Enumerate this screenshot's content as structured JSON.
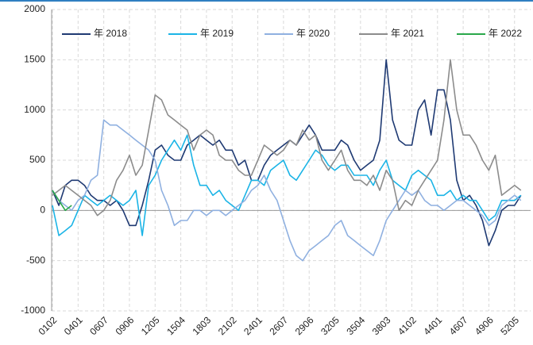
{
  "chart_data": {
    "type": "line",
    "categories": [
      "0102",
      null,
      null,
      null,
      "0401",
      null,
      null,
      null,
      "0607",
      null,
      null,
      null,
      "0906",
      null,
      null,
      null,
      "1205",
      null,
      null,
      null,
      "1504",
      null,
      null,
      null,
      "1803",
      null,
      null,
      null,
      "2102",
      null,
      null,
      null,
      "2401",
      null,
      null,
      null,
      "2607",
      null,
      null,
      null,
      "2906",
      null,
      null,
      null,
      "3205",
      null,
      null,
      null,
      "3504",
      null,
      null,
      null,
      "3803",
      null,
      null,
      null,
      "4102",
      null,
      null,
      null,
      "4401",
      null,
      null,
      null,
      "4607",
      null,
      null,
      null,
      "4906",
      null,
      null,
      null,
      "5205",
      null
    ],
    "series": [
      {
        "name": "年 2018",
        "color": "#1f3a73",
        "values": [
          200,
          50,
          250,
          300,
          300,
          250,
          150,
          100,
          100,
          50,
          100,
          0,
          -150,
          -150,
          50,
          300,
          600,
          650,
          550,
          500,
          500,
          650,
          700,
          750,
          700,
          650,
          700,
          600,
          600,
          450,
          500,
          300,
          300,
          450,
          550,
          600,
          650,
          700,
          650,
          750,
          850,
          750,
          600,
          600,
          600,
          700,
          650,
          500,
          400,
          450,
          500,
          700,
          1500,
          900,
          700,
          650,
          650,
          1000,
          1100,
          750,
          1200,
          1200,
          900,
          300,
          100,
          150,
          50,
          -100,
          -350,
          -200,
          0,
          50,
          50,
          150
        ]
      },
      {
        "name": "年 2019",
        "color": "#1bb4e6",
        "values": [
          50,
          -250,
          -200,
          -150,
          0,
          150,
          100,
          50,
          100,
          150,
          100,
          50,
          100,
          200,
          -250,
          250,
          350,
          500,
          600,
          700,
          600,
          750,
          450,
          250,
          250,
          150,
          200,
          100,
          50,
          0,
          150,
          300,
          300,
          250,
          400,
          450,
          500,
          350,
          300,
          400,
          500,
          600,
          550,
          450,
          400,
          450,
          450,
          350,
          350,
          350,
          250,
          400,
          500,
          300,
          250,
          200,
          350,
          400,
          350,
          300,
          150,
          150,
          200,
          100,
          150,
          100,
          100,
          0,
          -100,
          -50,
          100,
          100,
          100,
          150
        ]
      },
      {
        "name": "年 2020",
        "color": "#8fb0e0",
        "values": [
          200,
          100,
          50,
          0,
          100,
          150,
          300,
          350,
          900,
          850,
          850,
          800,
          750,
          700,
          650,
          600,
          500,
          200,
          50,
          -150,
          -100,
          -100,
          0,
          0,
          -50,
          0,
          0,
          -50,
          0,
          50,
          100,
          200,
          250,
          350,
          200,
          100,
          -100,
          -300,
          -450,
          -500,
          -400,
          -350,
          -300,
          -250,
          -150,
          -100,
          -250,
          -300,
          -350,
          -400,
          -450,
          -300,
          -100,
          0,
          100,
          200,
          150,
          200,
          100,
          50,
          50,
          0,
          50,
          100,
          100,
          50,
          0,
          -50,
          -150,
          -100,
          50,
          100,
          150,
          100
        ]
      },
      {
        "name": "年 2021",
        "color": "#8c8c8c",
        "values": [
          150,
          200,
          250,
          200,
          150,
          100,
          50,
          -50,
          0,
          100,
          300,
          400,
          550,
          350,
          450,
          800,
          1150,
          1100,
          950,
          900,
          850,
          800,
          600,
          750,
          800,
          750,
          550,
          500,
          500,
          400,
          350,
          350,
          500,
          650,
          600,
          550,
          600,
          700,
          650,
          800,
          700,
          750,
          500,
          400,
          500,
          600,
          400,
          300,
          300,
          250,
          350,
          200,
          400,
          300,
          0,
          100,
          50,
          200,
          300,
          400,
          500,
          900,
          1500,
          1000,
          750,
          750,
          650,
          500,
          400,
          550,
          150,
          200,
          250,
          200
        ]
      },
      {
        "name": "年 2022",
        "color": "#2aa84a",
        "values": [
          200,
          100,
          0,
          50,
          null,
          null,
          null,
          null,
          null,
          null,
          null,
          null,
          null,
          null,
          null,
          null,
          null,
          null,
          null,
          null,
          null,
          null,
          null,
          null,
          null,
          null,
          null,
          null,
          null,
          null,
          null,
          null,
          null,
          null,
          null,
          null,
          null,
          null,
          null,
          null,
          null,
          null,
          null,
          null,
          null,
          null,
          null,
          null,
          null,
          null,
          null,
          null,
          null,
          null,
          null,
          null,
          null,
          null,
          null,
          null,
          null,
          null,
          null,
          null,
          null,
          null,
          null,
          null,
          null,
          null,
          null,
          null,
          null,
          null
        ]
      }
    ],
    "ylim": [
      -1000,
      2000
    ],
    "yticks": [
      -1000,
      -500,
      0,
      500,
      1000,
      1500,
      2000
    ],
    "grid": true
  }
}
